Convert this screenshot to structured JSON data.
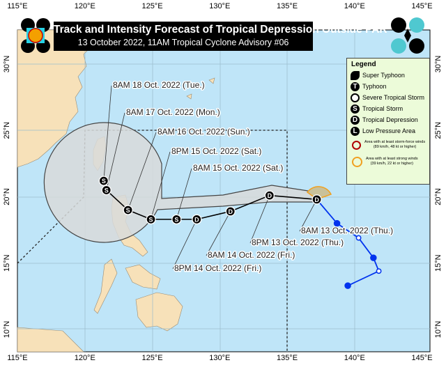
{
  "title": "Track and Intensity Forecast of Tropical Depression Outside PAR",
  "subtitle": "13 October 2022, 11AM Tropical Cyclone Advisory #06",
  "colors": {
    "sea": "#bfe5f8",
    "land": "#f7e1b9",
    "cone": "#d8dadb",
    "past_track": "#0033ee",
    "storm_force": "#b00000",
    "strong_winds": "#f0a020",
    "legend_bg": "#ecfbd9"
  },
  "axes": {
    "lon_ticks": [
      "115°E",
      "120°E",
      "125°E",
      "130°E",
      "135°E",
      "140°E",
      "145°E"
    ],
    "lat_ticks": [
      "30°N",
      "25°N",
      "20°N",
      "15°N",
      "10°N"
    ]
  },
  "legend": {
    "title": "Legend",
    "items": [
      {
        "icon": "super-typhoon-icon",
        "symbol": "",
        "label": "Super Typhoon"
      },
      {
        "icon": "typhoon-icon",
        "symbol": "T",
        "label": "Typhoon"
      },
      {
        "icon": "severe-tropical-storm-icon",
        "symbol": "",
        "label": "Severe Tropical Storm"
      },
      {
        "icon": "tropical-storm-icon",
        "symbol": "S",
        "label": "Tropical Storm"
      },
      {
        "icon": "tropical-depression-icon",
        "symbol": "D",
        "label": "Tropical Depression"
      },
      {
        "icon": "low-pressure-area-icon",
        "symbol": "L",
        "label": "Low Pressure Area"
      }
    ],
    "storm_force": {
      "line1": "Area with at least storm-force winds",
      "line2": "(89 km/h, 48 kt or higher)"
    },
    "strong_winds": {
      "line1": "Area with at least strong winds",
      "line2": "(39 km/h, 22 kt or higher)"
    }
  },
  "forecast_track": [
    {
      "label": "8AM 13 Oct. 2022 (Thu.)",
      "symbol": "D",
      "lon": 137.2,
      "lat": 19.8
    },
    {
      "label": "8PM 13 Oct. 2022 (Thu.)",
      "symbol": "D",
      "lon": 133.7,
      "lat": 20.1
    },
    {
      "label": "8AM 14 Oct. 2022 (Fri.)",
      "symbol": "D",
      "lon": 130.8,
      "lat": 18.9
    },
    {
      "label": "8PM 14 Oct. 2022 (Fri.)",
      "symbol": "D",
      "lon": 128.3,
      "lat": 18.3
    },
    {
      "label": "8AM 15 Oct. 2022 (Sat.)",
      "symbol": "S",
      "lon": 126.8,
      "lat": 18.3
    },
    {
      "label": "8PM 15 Oct. 2022 (Sat.)",
      "symbol": "S",
      "lon": 124.9,
      "lat": 18.3
    },
    {
      "label": "8AM 16 Oct. 2022 (Sun.)",
      "symbol": "S",
      "lon": 123.2,
      "lat": 19.0
    },
    {
      "label": "8AM 17 Oct. 2022 (Mon.)",
      "symbol": "S",
      "lon": 121.6,
      "lat": 20.5
    },
    {
      "label": "8AM 18 Oct. 2022 (Tue.)",
      "symbol": "S",
      "lon": 121.4,
      "lat": 21.2
    }
  ],
  "past_track": [
    {
      "lon": 139.5,
      "lat": 13.3,
      "filled": true
    },
    {
      "lon": 141.8,
      "lat": 14.4,
      "filled": false
    },
    {
      "lon": 141.4,
      "lat": 15.4,
      "filled": true
    },
    {
      "lon": 140.3,
      "lat": 16.9,
      "filled": false
    },
    {
      "lon": 138.7,
      "lat": 18.0,
      "filled": true
    },
    {
      "lon": 137.2,
      "lat": 19.8,
      "filled": true
    }
  ]
}
